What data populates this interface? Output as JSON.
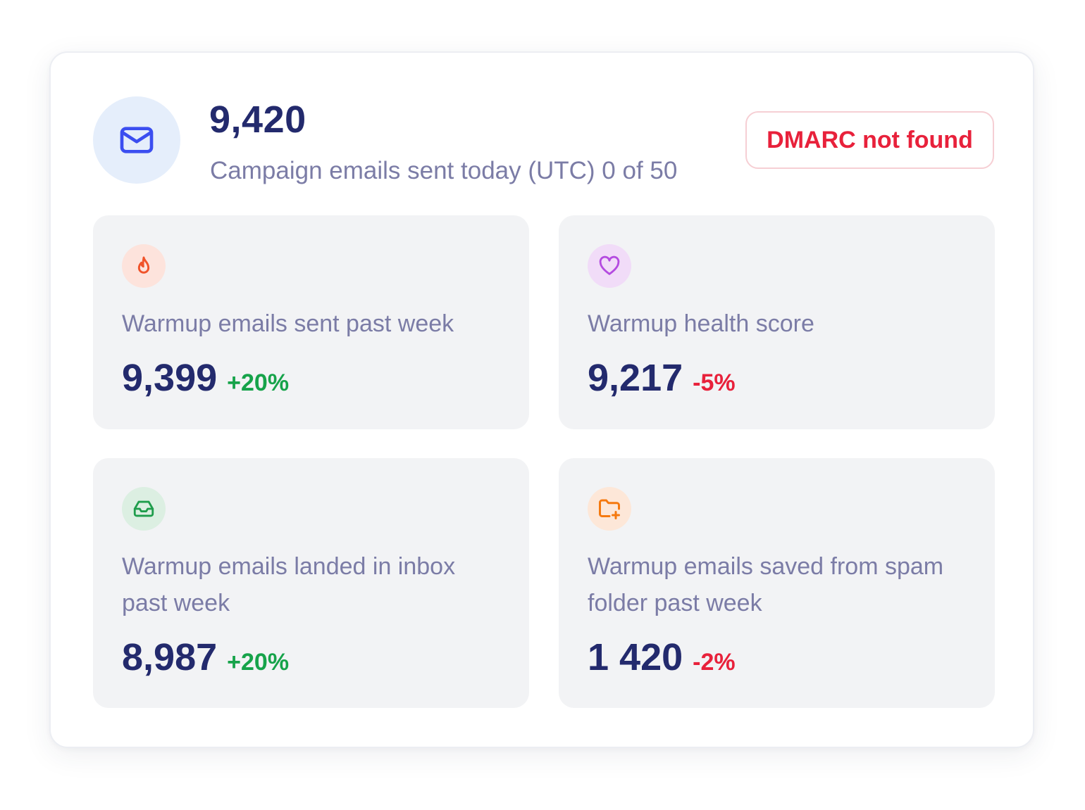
{
  "header": {
    "icon": "mail-icon",
    "value": "9,420",
    "subtitle": "Campaign emails sent today (UTC) 0 of 50",
    "badge": "DMARC not found"
  },
  "stats": [
    {
      "icon": "flame-icon",
      "label": "Warmup emails sent past week",
      "value": "9,399",
      "delta": "+20%",
      "trend": "up"
    },
    {
      "icon": "heart-icon",
      "label": "Warmup health score",
      "value": "9,217",
      "delta": "-5%",
      "trend": "down"
    },
    {
      "icon": "inbox-icon",
      "label": "Warmup emails landed in inbox past week",
      "value": "8,987",
      "delta": "+20%",
      "trend": "up"
    },
    {
      "icon": "folder-plus-icon",
      "label": "Warmup emails saved from spam folder past week",
      "value": "1 420",
      "delta": "-2%",
      "trend": "down"
    }
  ],
  "colors": {
    "primary_text": "#232a6d",
    "muted_text": "#7b7ca6",
    "positive": "#16a34a",
    "negative": "#e8213b",
    "mail_accent": "#3b4ef0",
    "flame_accent": "#f0532a",
    "heart_accent": "#b44be0",
    "inbox_accent": "#1f9d4c",
    "folder_accent": "#f5790f"
  }
}
